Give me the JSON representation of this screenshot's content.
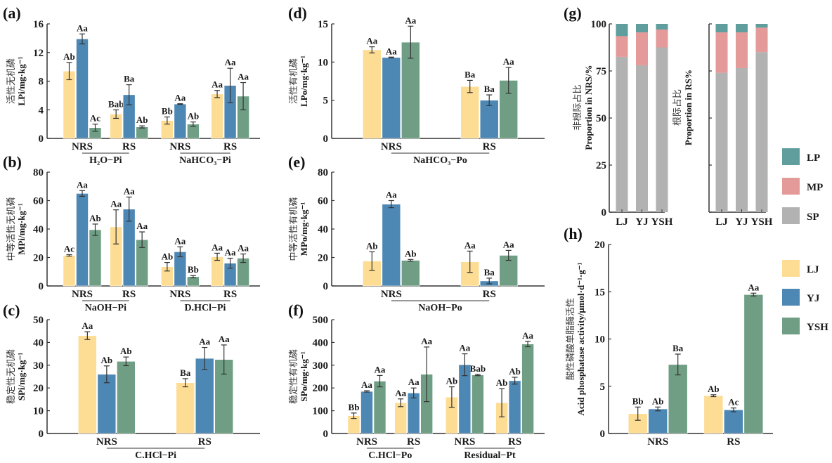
{
  "colors": {
    "LJ": "#fddc94",
    "YJ": "#4d87b3",
    "YSH": "#6f9e84",
    "LP": "#5f9e9c",
    "MP": "#e49a99",
    "SP": "#b2b2b2",
    "axis": "#333333"
  },
  "legend_treatments": [
    "LJ",
    "YJ",
    "YSH"
  ],
  "legend_fractions": [
    "LP",
    "MP",
    "SP"
  ],
  "chart_data": [
    {
      "id": "a",
      "panel_label": "(a)",
      "type": "bar",
      "ylabel_cn": "活性无机磷",
      "ylabel": "LPi/mg·kg⁻¹",
      "ylim": [
        0,
        16
      ],
      "yticks": [
        0,
        4,
        8,
        12,
        16
      ],
      "categories": [
        "NRS",
        "RS",
        "NRS",
        "RS"
      ],
      "groups": [
        {
          "label": "H₂O−Pi",
          "span": [
            0,
            1
          ]
        },
        {
          "label": "NaHCO₃−Pi",
          "span": [
            2,
            3
          ]
        }
      ],
      "series": [
        {
          "name": "LJ",
          "values": [
            9.4,
            3.4,
            2.5,
            6.2
          ],
          "errors": [
            1.2,
            0.6,
            0.5,
            0.5
          ],
          "letters": [
            "Ab",
            "Bab",
            "Bb",
            "Aa"
          ]
        },
        {
          "name": "YJ",
          "values": [
            13.9,
            6.1,
            4.8,
            7.4
          ],
          "errors": [
            0.7,
            1.4,
            0.05,
            2.4
          ],
          "letters": [
            "Aa",
            "Ba",
            "Aa",
            "Aa"
          ]
        },
        {
          "name": "YSH",
          "values": [
            1.5,
            1.6,
            2.0,
            5.9
          ],
          "errors": [
            0.5,
            0.15,
            0.3,
            1.9
          ],
          "letters": [
            "Ac",
            "Ab",
            "Ab",
            "Aa"
          ]
        }
      ]
    },
    {
      "id": "b",
      "panel_label": "(b)",
      "type": "bar",
      "ylabel_cn": "中等活性无机磷",
      "ylabel": "MPi/mg·kg⁻¹",
      "ylim": [
        0,
        80
      ],
      "yticks": [
        0,
        20,
        40,
        60,
        80
      ],
      "categories": [
        "NRS",
        "RS",
        "NRS",
        "RS"
      ],
      "groups": [
        {
          "label": "NaOH−Pi",
          "span": [
            0,
            1
          ]
        },
        {
          "label": "D.HCl−Pi",
          "span": [
            2,
            3
          ]
        }
      ],
      "series": [
        {
          "name": "LJ",
          "values": [
            21.5,
            41.5,
            13.5,
            20.5
          ],
          "errors": [
            0.5,
            12,
            3,
            2.5
          ],
          "letters": [
            "Ac",
            "Aa",
            "Ab",
            "Aa"
          ]
        },
        {
          "name": "YJ",
          "values": [
            65,
            54,
            24,
            16
          ],
          "errors": [
            2,
            8.5,
            3.5,
            3.5
          ],
          "letters": [
            "Aa",
            "Aa",
            "Aa",
            "Aa"
          ]
        },
        {
          "name": "YSH",
          "values": [
            39.5,
            32.5,
            6.5,
            19.5
          ],
          "errors": [
            4,
            5.5,
            0.8,
            3
          ],
          "letters": [
            "Ab",
            "Aa",
            "Bb",
            "Aa"
          ]
        }
      ]
    },
    {
      "id": "c",
      "panel_label": "(c)",
      "type": "bar",
      "ylabel_cn": "稳定性无机磷",
      "ylabel": "SPi/mg·kg⁻¹",
      "ylim": [
        0,
        50
      ],
      "yticks": [
        0,
        10,
        20,
        30,
        40,
        50
      ],
      "categories": [
        "NRS",
        "RS"
      ],
      "groups": [
        {
          "label": "C.HCl−Pi",
          "span": [
            0,
            1
          ]
        }
      ],
      "series": [
        {
          "name": "LJ",
          "values": [
            43,
            22.3
          ],
          "errors": [
            1.7,
            1.8
          ],
          "letters": [
            "Aa",
            "Ba"
          ]
        },
        {
          "name": "YJ",
          "values": [
            26,
            33
          ],
          "errors": [
            3.7,
            4.8
          ],
          "letters": [
            "Ab",
            "Aa"
          ]
        },
        {
          "name": "YSH",
          "values": [
            31.7,
            32.5
          ],
          "errors": [
            1.9,
            6.4
          ],
          "letters": [
            "Ab",
            "Aa"
          ]
        }
      ]
    },
    {
      "id": "d",
      "panel_label": "(d)",
      "type": "bar",
      "ylabel_cn": "活性有机磷",
      "ylabel": "LPo/mg·kg⁻¹",
      "ylim": [
        0,
        15
      ],
      "yticks": [
        0,
        5,
        10,
        15
      ],
      "categories": [
        "NRS",
        "RS"
      ],
      "groups": [
        {
          "label": "NaHCO₃−Po",
          "span": [
            0,
            1
          ]
        }
      ],
      "series": [
        {
          "name": "LJ",
          "values": [
            11.6,
            6.8
          ],
          "errors": [
            0.4,
            0.8
          ],
          "letters": [
            "Aa",
            "Ba"
          ]
        },
        {
          "name": "YJ",
          "values": [
            10.6,
            5.0
          ],
          "errors": [
            0.05,
            0.7
          ],
          "letters": [
            "Aa",
            "Ba"
          ]
        },
        {
          "name": "YSH",
          "values": [
            12.6,
            7.6
          ],
          "errors": [
            2.1,
            1.7
          ],
          "letters": [
            "Aa",
            "Aa"
          ]
        }
      ]
    },
    {
      "id": "e",
      "panel_label": "(e)",
      "type": "bar",
      "ylabel_cn": "中等活性有机磷",
      "ylabel": "MPo/mg·kg⁻¹",
      "ylim": [
        0,
        80
      ],
      "yticks": [
        0,
        20,
        40,
        60,
        80
      ],
      "categories": [
        "NRS",
        "RS"
      ],
      "groups": [
        {
          "label": "NaOH−Po",
          "span": [
            0,
            1
          ]
        }
      ],
      "series": [
        {
          "name": "LJ",
          "values": [
            17.5,
            17
          ],
          "errors": [
            6.5,
            7.5
          ],
          "letters": [
            "Ab",
            "Aa"
          ]
        },
        {
          "name": "YJ",
          "values": [
            57.5,
            3.5
          ],
          "errors": [
            2.5,
            2
          ],
          "letters": [
            "Aa",
            "Ba"
          ]
        },
        {
          "name": "YSH",
          "values": [
            18,
            21.5
          ],
          "errors": [
            0.6,
            3.5
          ],
          "letters": [
            "Ab",
            "Aa"
          ]
        }
      ]
    },
    {
      "id": "f",
      "panel_label": "(f)",
      "type": "bar",
      "ylabel_cn": "稳定性有机磷",
      "ylabel": "SPo/mg·kg⁻¹",
      "ylim": [
        0,
        500
      ],
      "yticks": [
        0,
        100,
        200,
        300,
        400,
        500
      ],
      "categories": [
        "NRS",
        "RS",
        "NRS",
        "RS"
      ],
      "groups": [
        {
          "label": "C.HCl−Po",
          "span": [
            0,
            1
          ]
        },
        {
          "label": "Residual−Pt",
          "span": [
            2,
            3
          ]
        }
      ],
      "series": [
        {
          "name": "LJ",
          "values": [
            78,
            135,
            160,
            135
          ],
          "errors": [
            12,
            17,
            45,
            62
          ],
          "letters": [
            "Bb",
            "Aa",
            "Ab",
            "Ab"
          ]
        },
        {
          "name": "YJ",
          "values": [
            185,
            178,
            302,
            232
          ],
          "errors": [
            3,
            22,
            48,
            15
          ],
          "letters": [
            "Aa",
            "Aa",
            "Aa",
            "Ab"
          ]
        },
        {
          "name": "YSH",
          "values": [
            230,
            260,
            257,
            393
          ],
          "errors": [
            25,
            120,
            3,
            12
          ],
          "letters": [
            "Aa",
            "Aa",
            "Bab",
            "Aa"
          ]
        }
      ]
    },
    {
      "id": "g",
      "panel_label": "(g)",
      "type": "stacked-bar",
      "subplots": [
        {
          "id": "g-nrs",
          "ylabel_cn": "非根际占比",
          "ylabel": "Proportion in NRS/%",
          "ylim": [
            0,
            100
          ],
          "yticks": [
            0,
            25,
            50,
            75,
            100
          ],
          "show_tick_labels": true,
          "categories": [
            "LJ",
            "YJ",
            "YSH"
          ],
          "series": [
            {
              "name": "SP",
              "values": [
                82.5,
                78,
                87.5
              ]
            },
            {
              "name": "MP",
              "values": [
                11,
                17.5,
                9.5
              ]
            },
            {
              "name": "LP",
              "values": [
                6.5,
                4.5,
                3
              ]
            }
          ]
        },
        {
          "id": "g-rs",
          "ylabel_cn": "根际占比",
          "ylabel": "Proportion in RS%",
          "ylim": [
            0,
            100
          ],
          "yticks": [
            0,
            25,
            50,
            75,
            100
          ],
          "show_tick_labels": false,
          "categories": [
            "LJ",
            "YJ",
            "YSH"
          ],
          "series": [
            {
              "name": "SP",
              "values": [
                74,
                76.5,
                85
              ]
            },
            {
              "name": "MP",
              "values": [
                21.5,
                19,
                13
              ]
            },
            {
              "name": "LP",
              "values": [
                4.5,
                4.5,
                2
              ]
            }
          ]
        }
      ]
    },
    {
      "id": "h",
      "panel_label": "(h)",
      "type": "bar",
      "ylabel_cn": "酸性磷酸单脂酶活性",
      "ylabel": "Acid phosphatase activity/μmol·d⁻¹·g⁻¹",
      "ylim": [
        0,
        20
      ],
      "yticks": [
        0,
        5,
        10,
        15,
        20
      ],
      "categories": [
        "NRS",
        "RS"
      ],
      "groups": [],
      "series": [
        {
          "name": "LJ",
          "values": [
            2.1,
            4.0
          ],
          "errors": [
            0.7,
            0.1
          ],
          "letters": [
            "Bb",
            "Ab"
          ]
        },
        {
          "name": "YJ",
          "values": [
            2.6,
            2.5
          ],
          "errors": [
            0.2,
            0.2
          ],
          "letters": [
            "Ab",
            "Ac"
          ]
        },
        {
          "name": "YSH",
          "values": [
            7.3,
            14.7
          ],
          "errors": [
            1.1,
            0.15
          ],
          "letters": [
            "Ba",
            "Aa"
          ]
        }
      ]
    }
  ]
}
